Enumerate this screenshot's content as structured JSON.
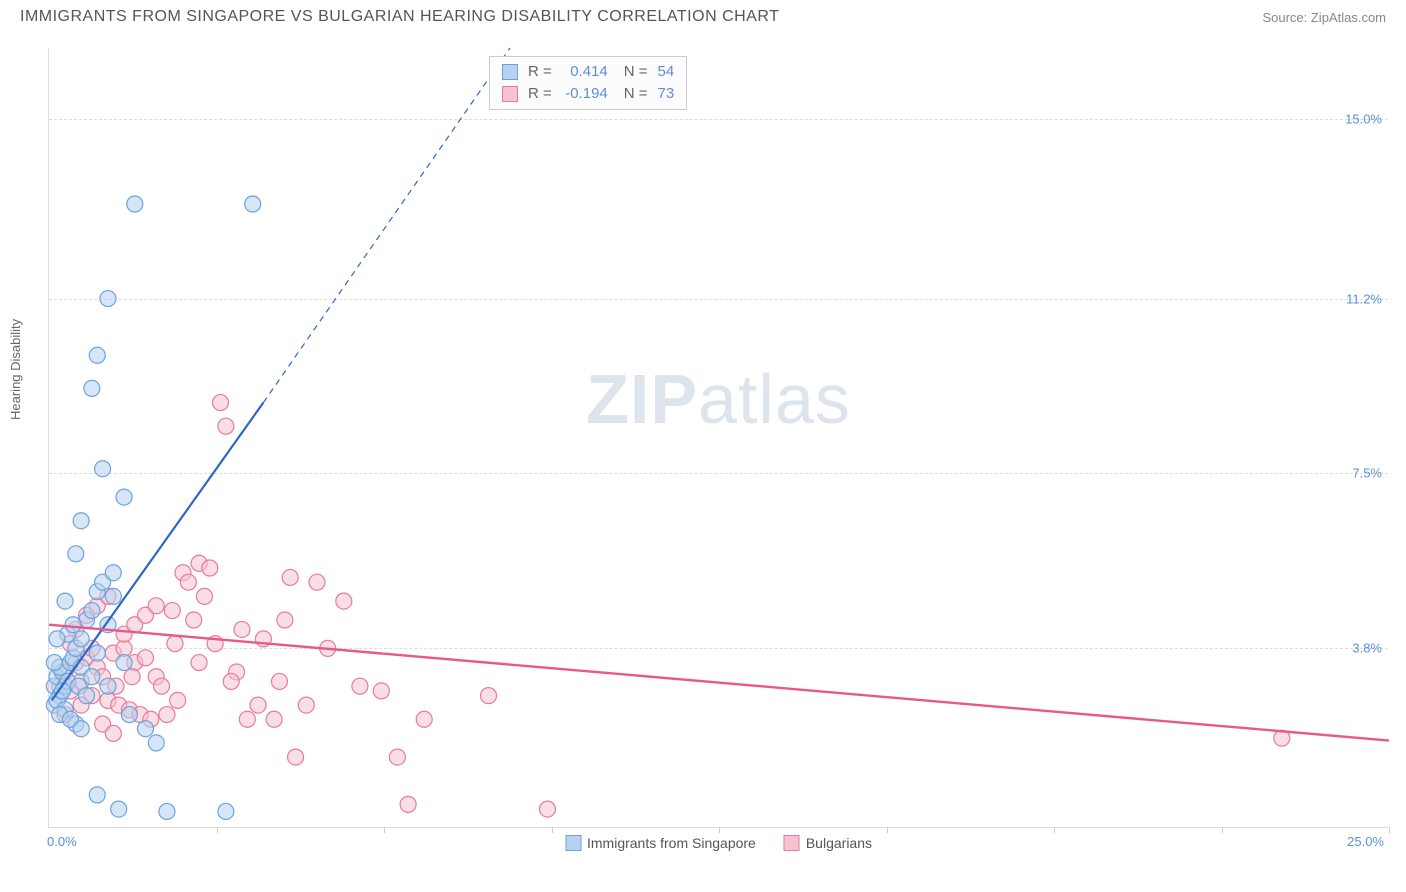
{
  "header": {
    "title": "IMMIGRANTS FROM SINGAPORE VS BULGARIAN HEARING DISABILITY CORRELATION CHART",
    "source": "Source: ZipAtlas.com"
  },
  "chart": {
    "type": "scatter",
    "ylabel": "Hearing Disability",
    "x_origin_label": "0.0%",
    "x_max_label": "25.0%",
    "xlim": [
      0,
      25
    ],
    "ylim": [
      0,
      16.5
    ],
    "ytick_labels": [
      "3.8%",
      "7.5%",
      "11.2%",
      "15.0%"
    ],
    "ytick_values": [
      3.8,
      7.5,
      11.2,
      15.0
    ],
    "xtick_values": [
      3.125,
      6.25,
      9.375,
      12.5,
      15.625,
      18.75,
      21.875,
      25
    ],
    "background_color": "#ffffff",
    "grid_color": "#dddddd",
    "marker_radius": 8,
    "marker_stroke_width": 1.2,
    "watermark": {
      "part1": "ZIP",
      "part2": "atlas"
    },
    "series_a": {
      "name": "Immigrants from Singapore",
      "fill": "#b7d2ee",
      "stroke": "#6ba3dd",
      "fill_opacity": 0.55,
      "R": "0.414",
      "N": "54",
      "trend": {
        "x1": 0.05,
        "y1": 2.7,
        "x2_solid": 4.0,
        "y2_solid": 9.0,
        "x2_dash": 8.6,
        "y2_dash": 16.5,
        "color": "#2b67c7",
        "width": 2.2
      },
      "points": [
        [
          0.1,
          3.0
        ],
        [
          0.15,
          3.2
        ],
        [
          0.2,
          2.8
        ],
        [
          0.25,
          3.3
        ],
        [
          0.3,
          3.0
        ],
        [
          0.1,
          2.6
        ],
        [
          0.2,
          3.4
        ],
        [
          0.35,
          3.1
        ],
        [
          0.15,
          2.7
        ],
        [
          0.4,
          3.5
        ],
        [
          0.3,
          2.5
        ],
        [
          0.45,
          3.6
        ],
        [
          0.2,
          2.4
        ],
        [
          0.5,
          3.8
        ],
        [
          0.1,
          3.5
        ],
        [
          0.25,
          2.9
        ],
        [
          0.6,
          4.0
        ],
        [
          0.7,
          4.4
        ],
        [
          0.8,
          4.6
        ],
        [
          0.5,
          2.2
        ],
        [
          0.9,
          5.0
        ],
        [
          0.6,
          3.4
        ],
        [
          1.0,
          5.2
        ],
        [
          0.4,
          2.3
        ],
        [
          1.2,
          5.4
        ],
        [
          0.8,
          3.2
        ],
        [
          1.1,
          4.3
        ],
        [
          0.55,
          3.0
        ],
        [
          1.3,
          0.4
        ],
        [
          2.0,
          1.8
        ],
        [
          3.3,
          0.35
        ],
        [
          1.5,
          2.4
        ],
        [
          1.8,
          2.1
        ],
        [
          2.2,
          0.35
        ],
        [
          0.6,
          2.1
        ],
        [
          0.7,
          2.8
        ],
        [
          0.9,
          0.7
        ],
        [
          1.0,
          7.6
        ],
        [
          0.6,
          6.5
        ],
        [
          1.4,
          7.0
        ],
        [
          1.6,
          13.2
        ],
        [
          3.8,
          13.2
        ],
        [
          1.1,
          11.2
        ],
        [
          0.8,
          9.3
        ],
        [
          0.9,
          10.0
        ],
        [
          0.5,
          5.8
        ],
        [
          1.2,
          4.9
        ],
        [
          0.35,
          4.1
        ],
        [
          0.45,
          4.3
        ],
        [
          0.15,
          4.0
        ],
        [
          0.3,
          4.8
        ],
        [
          0.9,
          3.7
        ],
        [
          1.1,
          3.0
        ],
        [
          1.4,
          3.5
        ]
      ]
    },
    "series_b": {
      "name": "Bulgarians",
      "fill": "#f5c3d0",
      "stroke": "#e77b9c",
      "fill_opacity": 0.55,
      "R": "-0.194",
      "N": "73",
      "trend": {
        "x1": 0,
        "y1": 4.3,
        "x2": 25,
        "y2": 1.85,
        "color": "#e8588c",
        "width": 2.4
      },
      "points": [
        [
          0.2,
          3.0
        ],
        [
          0.3,
          3.3
        ],
        [
          0.4,
          2.9
        ],
        [
          0.5,
          3.5
        ],
        [
          0.6,
          3.1
        ],
        [
          0.7,
          3.6
        ],
        [
          0.8,
          2.8
        ],
        [
          0.9,
          3.4
        ],
        [
          1.0,
          3.2
        ],
        [
          1.1,
          2.7
        ],
        [
          1.2,
          3.7
        ],
        [
          1.3,
          2.6
        ],
        [
          1.4,
          3.8
        ],
        [
          1.5,
          2.5
        ],
        [
          1.6,
          3.5
        ],
        [
          1.7,
          2.4
        ],
        [
          1.8,
          3.6
        ],
        [
          1.9,
          2.3
        ],
        [
          2.0,
          3.2
        ],
        [
          2.1,
          3.0
        ],
        [
          2.3,
          4.6
        ],
        [
          2.5,
          5.4
        ],
        [
          2.6,
          5.2
        ],
        [
          2.7,
          4.4
        ],
        [
          2.8,
          5.6
        ],
        [
          2.9,
          4.9
        ],
        [
          3.0,
          5.5
        ],
        [
          3.1,
          3.9
        ],
        [
          3.2,
          9.0
        ],
        [
          3.3,
          8.5
        ],
        [
          3.5,
          3.3
        ],
        [
          3.7,
          2.3
        ],
        [
          4.0,
          4.0
        ],
        [
          4.2,
          2.3
        ],
        [
          4.5,
          5.3
        ],
        [
          4.6,
          1.5
        ],
        [
          5.0,
          5.2
        ],
        [
          5.2,
          3.8
        ],
        [
          5.5,
          4.8
        ],
        [
          5.8,
          3.0
        ],
        [
          6.2,
          2.9
        ],
        [
          6.5,
          1.5
        ],
        [
          6.7,
          0.5
        ],
        [
          7.0,
          2.3
        ],
        [
          8.2,
          2.8
        ],
        [
          9.3,
          0.4
        ],
        [
          3.9,
          2.6
        ],
        [
          4.3,
          3.1
        ],
        [
          2.2,
          2.4
        ],
        [
          2.4,
          2.7
        ],
        [
          1.0,
          2.2
        ],
        [
          1.2,
          2.0
        ],
        [
          1.4,
          4.1
        ],
        [
          1.6,
          4.3
        ],
        [
          1.8,
          4.5
        ],
        [
          2.0,
          4.7
        ],
        [
          0.5,
          4.2
        ],
        [
          0.7,
          4.5
        ],
        [
          0.9,
          4.7
        ],
        [
          1.1,
          4.9
        ],
        [
          23.0,
          1.9
        ],
        [
          0.4,
          3.9
        ],
        [
          0.3,
          2.4
        ],
        [
          0.6,
          2.6
        ],
        [
          0.8,
          3.8
        ],
        [
          2.8,
          3.5
        ],
        [
          3.4,
          3.1
        ],
        [
          3.6,
          4.2
        ],
        [
          4.4,
          4.4
        ],
        [
          4.8,
          2.6
        ],
        [
          2.35,
          3.9
        ],
        [
          1.55,
          3.2
        ],
        [
          1.25,
          3.0
        ]
      ]
    },
    "legend_labels": {
      "R_prefix": "R =",
      "N_prefix": "N ="
    }
  }
}
